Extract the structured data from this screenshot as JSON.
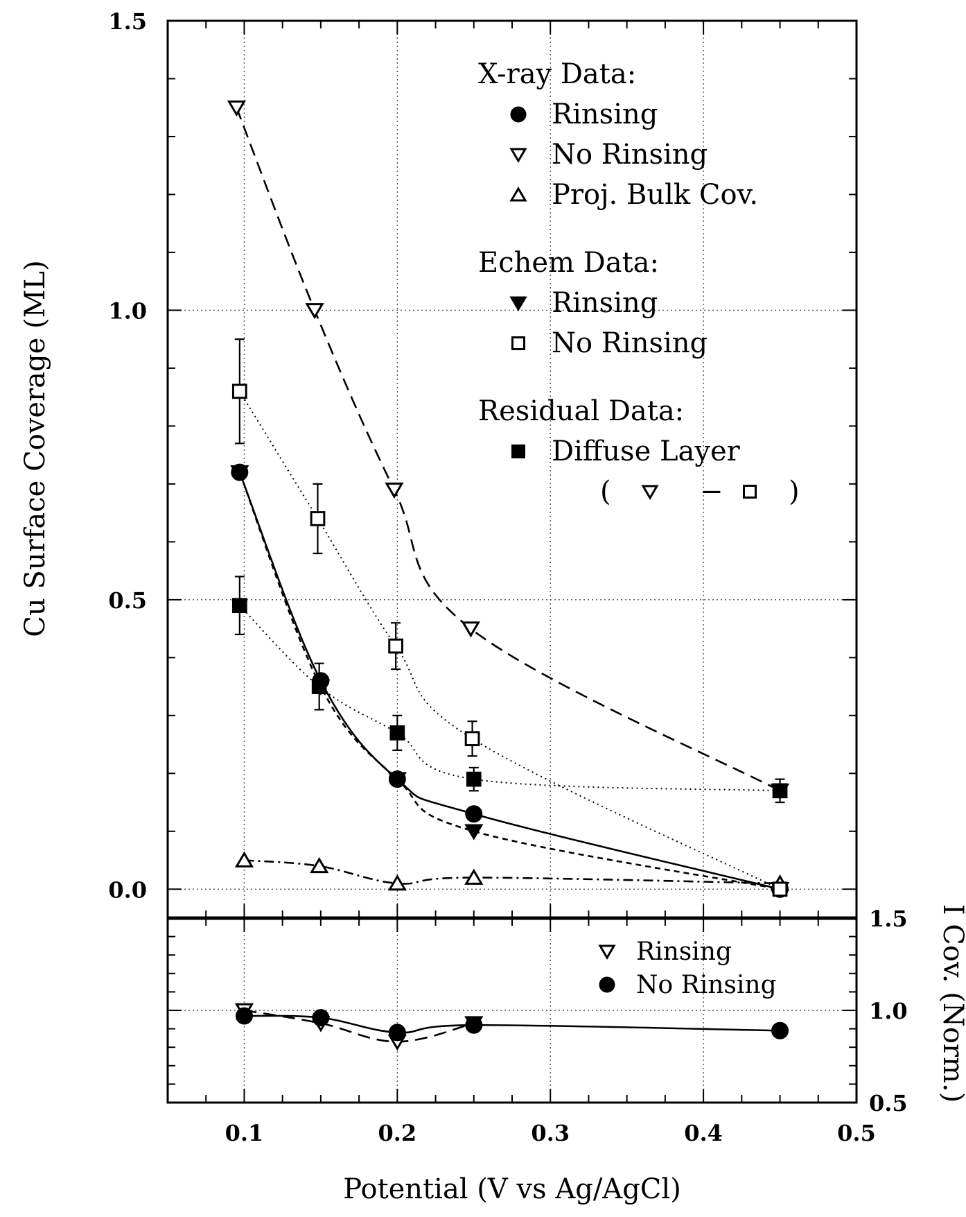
{
  "chart_data": [
    {
      "panel": "top",
      "type": "scatter",
      "ylabel": "Cu Surface Coverage (ML)",
      "xlim": [
        0.05,
        0.5
      ],
      "ylim": [
        -0.05,
        1.5
      ],
      "yticks": [
        "0.0",
        "0.5",
        "1.0",
        "1.5"
      ],
      "grid": true,
      "legend": {
        "placement": "top-right",
        "groups": [
          {
            "heading": "X-ray Data:",
            "items": [
              {
                "marker": "filled-circle",
                "label": "Rinsing"
              },
              {
                "marker": "open-down-triangle",
                "label": "No Rinsing"
              },
              {
                "marker": "open-up-triangle",
                "label": "Proj. Bulk Cov."
              }
            ]
          },
          {
            "heading": "Echem Data:",
            "items": [
              {
                "marker": "filled-down-triangle",
                "label": "Rinsing"
              },
              {
                "marker": "open-square",
                "label": "No Rinsing"
              }
            ]
          },
          {
            "heading": "Residual Data:",
            "items": [
              {
                "marker": "filled-square",
                "label": "Diffuse Layer"
              }
            ],
            "formula": {
              "open": "(",
              "minus": "−",
              "close": ")"
            }
          }
        ]
      },
      "series": [
        {
          "name": "X-ray Data: Rinsing",
          "marker": "filled-circle",
          "line": "solid",
          "x": [
            0.097,
            0.15,
            0.2,
            0.25,
            0.45
          ],
          "y": [
            0.72,
            0.36,
            0.19,
            0.13,
            0.0
          ]
        },
        {
          "name": "X-ray Data: No Rinsing",
          "marker": "open-down-triangle",
          "line": "dashed",
          "x": [
            0.095,
            0.146,
            0.198,
            0.248,
            0.45
          ],
          "y": [
            1.35,
            1.0,
            0.69,
            0.45,
            0.17
          ]
        },
        {
          "name": "Proj. Bulk Cov.",
          "marker": "open-up-triangle",
          "line": "dashdot",
          "x": [
            0.1,
            0.149,
            0.2,
            0.25,
            0.45
          ],
          "y": [
            0.05,
            0.04,
            0.01,
            0.02,
            0.01
          ]
        },
        {
          "name": "Echem Data: Rinsing",
          "marker": "filled-down-triangle",
          "line": "short-dashed",
          "x": [
            0.097,
            0.15,
            0.2,
            0.25,
            0.45
          ],
          "y": [
            0.72,
            0.35,
            0.19,
            0.1,
            0.0
          ]
        },
        {
          "name": "Echem Data: No Rinsing",
          "marker": "open-square",
          "line": "dotted",
          "x": [
            0.097,
            0.148,
            0.199,
            0.249,
            0.45
          ],
          "y": [
            0.86,
            0.64,
            0.42,
            0.26,
            0.0
          ],
          "err": [
            0.09,
            0.06,
            0.04,
            0.03,
            0.0
          ]
        },
        {
          "name": "Diffuse Layer",
          "marker": "filled-square",
          "line": "dotted",
          "x": [
            0.097,
            0.149,
            0.2,
            0.25,
            0.45
          ],
          "y": [
            0.49,
            0.35,
            0.27,
            0.19,
            0.17
          ],
          "err": [
            0.05,
            0.04,
            0.03,
            0.02,
            0.02
          ]
        }
      ]
    },
    {
      "panel": "bottom",
      "type": "scatter",
      "ylabel": "I Cov. (Norm.)",
      "xlabel": "Potential (V vs Ag/AgCl)",
      "xlim": [
        0.05,
        0.5
      ],
      "ylim": [
        0.5,
        1.5
      ],
      "xticks": [
        "0.1",
        "0.2",
        "0.3",
        "0.4",
        "0.5"
      ],
      "yticks": [
        "0.5",
        "1.0",
        "1.5"
      ],
      "grid": true,
      "legend": {
        "placement": "top-right",
        "items": [
          {
            "marker": "open-down-triangle",
            "label": "Rinsing"
          },
          {
            "marker": "filled-circle",
            "label": "No Rinsing"
          }
        ]
      },
      "series": [
        {
          "name": "Rinsing",
          "marker": "open-down-triangle",
          "line": "dashed",
          "x": [
            0.1,
            0.15,
            0.2,
            0.25
          ],
          "y": [
            1.0,
            0.93,
            0.83,
            0.93
          ]
        },
        {
          "name": "No Rinsing",
          "marker": "filled-circle",
          "line": "solid",
          "x": [
            0.1,
            0.15,
            0.2,
            0.25,
            0.45
          ],
          "y": [
            0.97,
            0.96,
            0.88,
            0.92,
            0.89
          ]
        }
      ]
    }
  ]
}
